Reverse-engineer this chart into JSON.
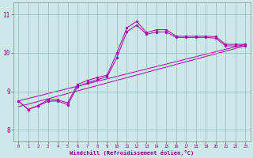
{
  "xlabel": "Windchill (Refroidissement éolien,°C)",
  "xlim": [
    -0.5,
    23.5
  ],
  "ylim": [
    7.7,
    11.3
  ],
  "yticks": [
    8,
    9,
    10,
    11
  ],
  "xticks": [
    0,
    1,
    2,
    3,
    4,
    5,
    6,
    7,
    8,
    9,
    10,
    11,
    12,
    13,
    14,
    15,
    16,
    17,
    18,
    19,
    20,
    21,
    22,
    23
  ],
  "background_color": "#cce8e8",
  "line_color": "#aa00aa",
  "grid_color": "#99bbbb",
  "main_x": [
    0,
    1,
    2,
    3,
    4,
    5,
    6,
    7,
    8,
    9,
    10,
    11,
    12,
    13,
    14,
    15,
    16,
    17,
    18,
    19,
    20,
    21,
    22,
    23
  ],
  "main_y": [
    8.75,
    8.53,
    8.63,
    8.78,
    8.78,
    8.7,
    9.18,
    9.28,
    9.36,
    9.42,
    10.0,
    10.65,
    10.82,
    10.52,
    10.6,
    10.6,
    10.43,
    10.43,
    10.43,
    10.43,
    10.42,
    10.22,
    10.22,
    10.22
  ],
  "line2_y": [
    8.75,
    8.53,
    8.62,
    8.74,
    8.75,
    8.65,
    9.12,
    9.22,
    9.3,
    9.38,
    9.88,
    10.55,
    10.72,
    10.48,
    10.54,
    10.54,
    10.4,
    10.4,
    10.4,
    10.4,
    10.38,
    10.18,
    10.18,
    10.18
  ],
  "trend1_x": [
    0,
    23
  ],
  "trend1_y": [
    8.75,
    10.22
  ],
  "trend2_x": [
    0,
    23
  ],
  "trend2_y": [
    8.6,
    10.18
  ]
}
